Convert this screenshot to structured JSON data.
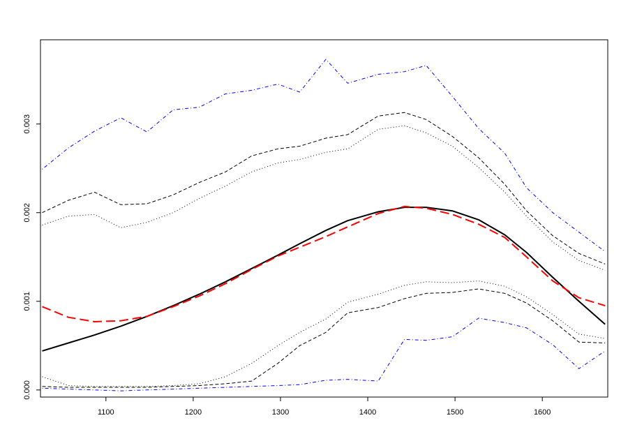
{
  "chart_data": {
    "type": "line",
    "title": "",
    "xlabel": "",
    "ylabel": "",
    "xlim": [
      1025,
      1675
    ],
    "ylim": [
      -8e-05,
      0.00395
    ],
    "grid": false,
    "x_ticks": [
      1100,
      1200,
      1300,
      1400,
      1500,
      1600
    ],
    "x_tick_labels": [
      "1100",
      "1200",
      "1300",
      "1400",
      "1500",
      "1600"
    ],
    "y_ticks": [
      0.0,
      0.001,
      0.002,
      0.003
    ],
    "y_tick_labels": [
      "0.000",
      "0.001",
      "0.002",
      "0.003"
    ],
    "x": [
      1027,
      1057,
      1087,
      1117,
      1147,
      1177,
      1207,
      1237,
      1267,
      1297,
      1322,
      1352,
      1377,
      1412,
      1442,
      1467,
      1497,
      1527,
      1557,
      1582,
      1612,
      1642,
      1672
    ],
    "series": [
      {
        "style": "solid",
        "color": "#000000",
        "width": 2,
        "values": [
          0.00044,
          0.00053,
          0.00062,
          0.00072,
          0.00083,
          0.00095,
          0.00108,
          0.00122,
          0.00137,
          0.00152,
          0.00165,
          0.0018,
          0.00191,
          0.00201,
          0.00206,
          0.00206,
          0.00202,
          0.00192,
          0.00175,
          0.00155,
          0.00127,
          0.001,
          0.00074
        ]
      },
      {
        "style": "longdash",
        "color": "#ff0000",
        "width": 2,
        "values": [
          0.00094,
          0.00082,
          0.00077,
          0.00078,
          0.00083,
          0.00094,
          0.00106,
          0.0012,
          0.00136,
          0.00151,
          0.00161,
          0.00173,
          0.00184,
          0.00199,
          0.00207,
          0.00205,
          0.00198,
          0.00187,
          0.00172,
          0.0015,
          0.00123,
          0.00104,
          0.00095
        ]
      },
      {
        "style": "dashed",
        "color": "#000000",
        "width": 1,
        "values": [
          0.002,
          0.00214,
          0.00223,
          0.00209,
          0.0021,
          0.0022,
          0.00234,
          0.00246,
          0.00264,
          0.00272,
          0.00275,
          0.00284,
          0.00288,
          0.00309,
          0.00313,
          0.00305,
          0.00286,
          0.00262,
          0.00232,
          0.00202,
          0.00174,
          0.00154,
          0.00142
        ]
      },
      {
        "style": "dotted",
        "color": "#000000",
        "width": 1,
        "values": [
          0.00186,
          0.00196,
          0.00198,
          0.00183,
          0.00189,
          0.002,
          0.00216,
          0.0023,
          0.00246,
          0.00256,
          0.0026,
          0.00268,
          0.00272,
          0.00294,
          0.00298,
          0.0029,
          0.00275,
          0.00251,
          0.00223,
          0.00196,
          0.00167,
          0.00146,
          0.00135
        ]
      },
      {
        "style": "dashed",
        "color": "#000000",
        "width": 1,
        "values": [
          4e-05,
          3e-05,
          3e-05,
          3e-05,
          3e-05,
          4e-05,
          5e-05,
          7e-05,
          0.0001,
          0.0003,
          0.0005,
          0.00065,
          0.00087,
          0.00093,
          0.00103,
          0.00109,
          0.0011,
          0.00114,
          0.00109,
          0.00098,
          0.00078,
          0.00054,
          0.00053
        ]
      },
      {
        "style": "dotted",
        "color": "#000000",
        "width": 1,
        "values": [
          0.00015,
          5e-05,
          4e-05,
          4e-05,
          4e-05,
          5e-05,
          7e-05,
          0.00015,
          0.0003,
          0.0005,
          0.00065,
          0.0008,
          0.00099,
          0.00108,
          0.00118,
          0.00122,
          0.00121,
          0.00123,
          0.00117,
          0.00105,
          0.00085,
          0.00063,
          0.00058
        ]
      },
      {
        "style": "dotdash",
        "color": "#0000ff",
        "width": 1,
        "values": [
          0.00249,
          0.00273,
          0.00292,
          0.00307,
          0.00291,
          0.00316,
          0.00319,
          0.00334,
          0.00338,
          0.00345,
          0.00336,
          0.00373,
          0.00346,
          0.00356,
          0.00359,
          0.00366,
          0.00331,
          0.00295,
          0.00267,
          0.00228,
          0.002,
          0.00178,
          0.00156
        ]
      },
      {
        "style": "dotdash",
        "color": "#0000ff",
        "width": 1,
        "values": [
          2e-05,
          1e-05,
          0.0,
          -1e-05,
          0.0,
          1e-05,
          2e-05,
          3e-05,
          4e-05,
          5e-05,
          6e-05,
          0.00011,
          0.00012,
          0.0001,
          0.00057,
          0.00056,
          0.0006,
          0.00081,
          0.00076,
          0.0007,
          0.00051,
          0.00024,
          0.00044
        ]
      }
    ]
  }
}
